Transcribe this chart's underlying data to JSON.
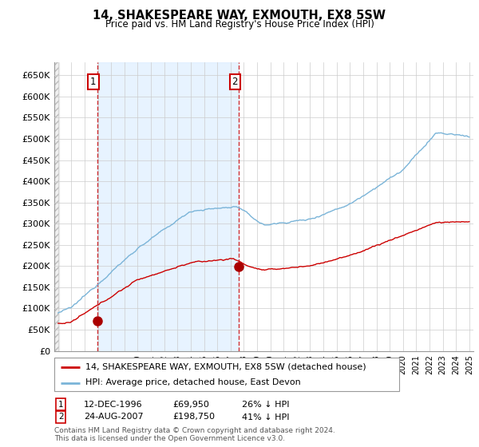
{
  "title": "14, SHAKESPEARE WAY, EXMOUTH, EX8 5SW",
  "subtitle": "Price paid vs. HM Land Registry's House Price Index (HPI)",
  "legend_line1": "14, SHAKESPEARE WAY, EXMOUTH, EX8 5SW (detached house)",
  "legend_line2": "HPI: Average price, detached house, East Devon",
  "sale1_date": "12-DEC-1996",
  "sale1_price": "£69,950",
  "sale1_hpi": "26% ↓ HPI",
  "sale2_date": "24-AUG-2007",
  "sale2_price": "£198,750",
  "sale2_hpi": "41% ↓ HPI",
  "footnote": "Contains HM Land Registry data © Crown copyright and database right 2024.\nThis data is licensed under the Open Government Licence v3.0.",
  "hpi_color": "#7ab4d8",
  "sale_color": "#cc0000",
  "marker_color": "#aa0000",
  "grid_color": "#cccccc",
  "shade_color": "#ddeeff",
  "ylim": [
    0,
    680000
  ],
  "yticks": [
    0,
    50000,
    100000,
    150000,
    200000,
    250000,
    300000,
    350000,
    400000,
    450000,
    500000,
    550000,
    600000,
    650000
  ],
  "xlim_start": 1993.7,
  "xlim_end": 2025.3,
  "sale1_x": 1996.95,
  "sale1_y": 69950,
  "sale2_x": 2007.63,
  "sale2_y": 198750
}
